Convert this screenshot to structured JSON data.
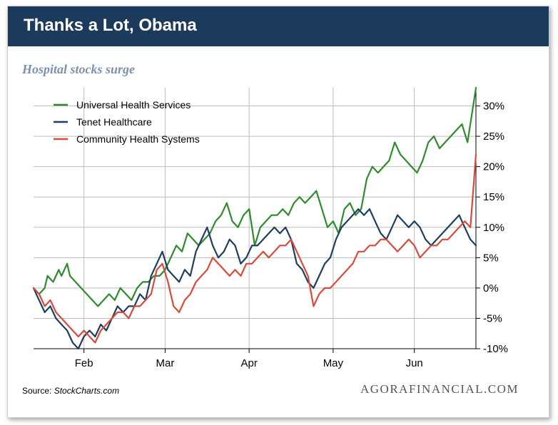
{
  "header": {
    "title": "Thanks a Lot, Obama"
  },
  "chart_data": {
    "type": "line",
    "title": "Hospital stocks surge",
    "xlabel": "",
    "ylabel": "",
    "ylim": [
      -10,
      33
    ],
    "y_ticks": [
      30,
      25,
      20,
      15,
      10,
      5,
      0,
      -5,
      -10
    ],
    "y_tick_labels": [
      "30%",
      "25%",
      "20%",
      "15%",
      "10%",
      "5%",
      "0%",
      "-5%",
      "-10%"
    ],
    "x_ticks": [
      18,
      47,
      77,
      107,
      136
    ],
    "x_tick_labels": [
      "Feb",
      "Mar",
      "Apr",
      "May",
      "Jun"
    ],
    "xlim": [
      0,
      158
    ],
    "legend_position": "top-left",
    "series": [
      {
        "name": "Universal Health Services",
        "color": "#2e8b2e",
        "x": [
          0,
          2,
          4,
          5,
          7,
          9,
          10,
          12,
          13,
          15,
          17,
          19,
          21,
          23,
          25,
          27,
          29,
          31,
          33,
          35,
          37,
          39,
          41,
          43,
          45,
          47,
          49,
          51,
          53,
          55,
          57,
          59,
          61,
          63,
          65,
          67,
          69,
          71,
          73,
          75,
          77,
          79,
          81,
          83,
          85,
          87,
          89,
          91,
          93,
          95,
          97,
          99,
          101,
          103,
          105,
          107,
          109,
          111,
          113,
          115,
          117,
          119,
          121,
          123,
          125,
          127,
          129,
          131,
          133,
          135,
          137,
          139,
          141,
          143,
          145,
          147,
          149,
          151,
          153,
          155,
          157,
          158
        ],
        "values": [
          0,
          -1,
          0,
          2,
          1,
          3,
          2,
          4,
          2,
          1,
          0,
          -1,
          -2,
          -3,
          -2,
          -1,
          -2,
          0,
          -1,
          -2,
          0,
          1,
          1,
          2,
          2,
          3,
          5,
          7,
          6,
          9,
          8,
          7,
          8,
          9,
          11,
          12,
          14,
          11,
          10,
          12,
          13,
          7,
          10,
          11,
          12,
          12,
          13,
          12,
          14,
          15,
          14,
          15,
          16,
          13,
          10,
          11,
          9,
          13,
          14,
          12,
          13,
          18,
          20,
          19,
          20,
          21,
          24,
          22,
          21,
          20,
          19,
          21,
          24,
          25,
          23,
          24,
          25,
          26,
          27,
          24,
          30,
          33
        ]
      },
      {
        "name": "Tenet Healthcare",
        "color": "#1e3d5f",
        "x": [
          0,
          2,
          4,
          6,
          8,
          10,
          12,
          14,
          16,
          18,
          20,
          22,
          24,
          26,
          28,
          30,
          32,
          34,
          36,
          38,
          40,
          42,
          44,
          46,
          48,
          50,
          52,
          54,
          56,
          58,
          60,
          62,
          64,
          66,
          68,
          70,
          72,
          74,
          76,
          78,
          80,
          82,
          84,
          86,
          88,
          90,
          92,
          94,
          96,
          98,
          100,
          102,
          104,
          106,
          108,
          110,
          112,
          114,
          116,
          118,
          120,
          122,
          124,
          126,
          128,
          130,
          132,
          134,
          136,
          138,
          140,
          142,
          144,
          146,
          148,
          150,
          152,
          154,
          156,
          158
        ],
        "values": [
          0,
          -2,
          -4,
          -3,
          -5,
          -6,
          -7,
          -9,
          -10,
          -8,
          -7,
          -8,
          -6,
          -7,
          -5,
          -3,
          -4,
          -3,
          -3,
          -1,
          -2,
          2,
          4,
          6,
          3,
          2,
          1,
          3,
          2,
          6,
          8,
          10,
          7,
          5,
          6,
          8,
          7,
          4,
          5,
          7,
          7,
          8,
          9,
          10,
          9,
          10,
          8,
          4,
          3,
          1,
          0,
          2,
          4,
          5,
          8,
          10,
          11,
          12,
          13,
          12,
          13,
          11,
          9,
          8,
          10,
          12,
          11,
          10,
          11,
          10,
          8,
          7,
          8,
          9,
          10,
          11,
          12,
          10,
          8,
          7
        ]
      },
      {
        "name": "Community Health Systems",
        "color": "#d94a3a",
        "x": [
          0,
          2,
          4,
          6,
          8,
          10,
          12,
          14,
          16,
          18,
          20,
          22,
          24,
          26,
          28,
          30,
          32,
          34,
          36,
          38,
          40,
          42,
          44,
          46,
          48,
          50,
          52,
          54,
          56,
          58,
          60,
          62,
          64,
          66,
          68,
          70,
          72,
          74,
          76,
          78,
          80,
          82,
          84,
          86,
          88,
          90,
          92,
          94,
          96,
          98,
          100,
          102,
          104,
          106,
          108,
          110,
          112,
          114,
          116,
          118,
          120,
          122,
          124,
          126,
          128,
          130,
          132,
          134,
          136,
          138,
          140,
          142,
          144,
          146,
          148,
          150,
          152,
          154,
          156,
          158
        ],
        "values": [
          0,
          -1,
          -3,
          -2,
          -4,
          -5,
          -6,
          -7,
          -8,
          -7,
          -8,
          -9,
          -7,
          -6,
          -5,
          -4,
          -4,
          -5,
          -3,
          -3,
          -2,
          -1,
          3,
          4,
          1,
          -3,
          -4,
          -2,
          -1,
          1,
          2,
          3,
          5,
          4,
          3,
          2,
          3,
          2,
          4,
          4,
          5,
          6,
          5,
          6,
          7,
          7,
          8,
          6,
          4,
          2,
          -3,
          -1,
          0,
          0,
          1,
          2,
          3,
          4,
          6,
          6,
          7,
          7,
          8,
          8,
          7,
          6,
          7,
          8,
          7,
          5,
          6,
          7,
          7,
          8,
          8,
          9,
          10,
          11,
          10,
          22
        ]
      }
    ]
  },
  "footer": {
    "source_label": "Source:",
    "source_site": "StockCharts.com",
    "brand": "AGORAFINANCIAL.COM"
  }
}
